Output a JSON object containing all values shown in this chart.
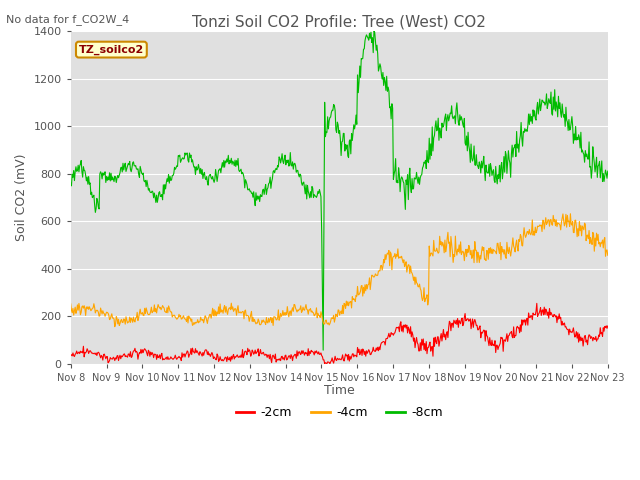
{
  "title": "Tonzi Soil CO2 Profile: Tree (West) CO2",
  "subtitle": "No data for f_CO2W_4",
  "ylabel": "Soil CO2 (mV)",
  "xlabel": "Time",
  "legend_label": "TZ_soilco2",
  "ylim": [
    0,
    1400
  ],
  "series_labels": [
    "-2cm",
    "-4cm",
    "-8cm"
  ],
  "series_colors": [
    "#ff0000",
    "#ffa500",
    "#00bb00"
  ],
  "x_tick_labels": [
    "Nov 8",
    "Nov 9",
    "Nov 10",
    "Nov 11",
    "Nov 12",
    "Nov 13",
    "Nov 14",
    "Nov 15",
    "Nov 16",
    "Nov 17",
    "Nov 18",
    "Nov 19",
    "Nov 20",
    "Nov 21",
    "Nov 22",
    "Nov 23"
  ],
  "background_color": "#ffffff",
  "plot_bg_color": "#e0e0e0",
  "title_color": "#555555",
  "axis_color": "#555555",
  "grid_color": "#ffffff",
  "figsize": [
    6.4,
    4.8
  ],
  "dpi": 100
}
